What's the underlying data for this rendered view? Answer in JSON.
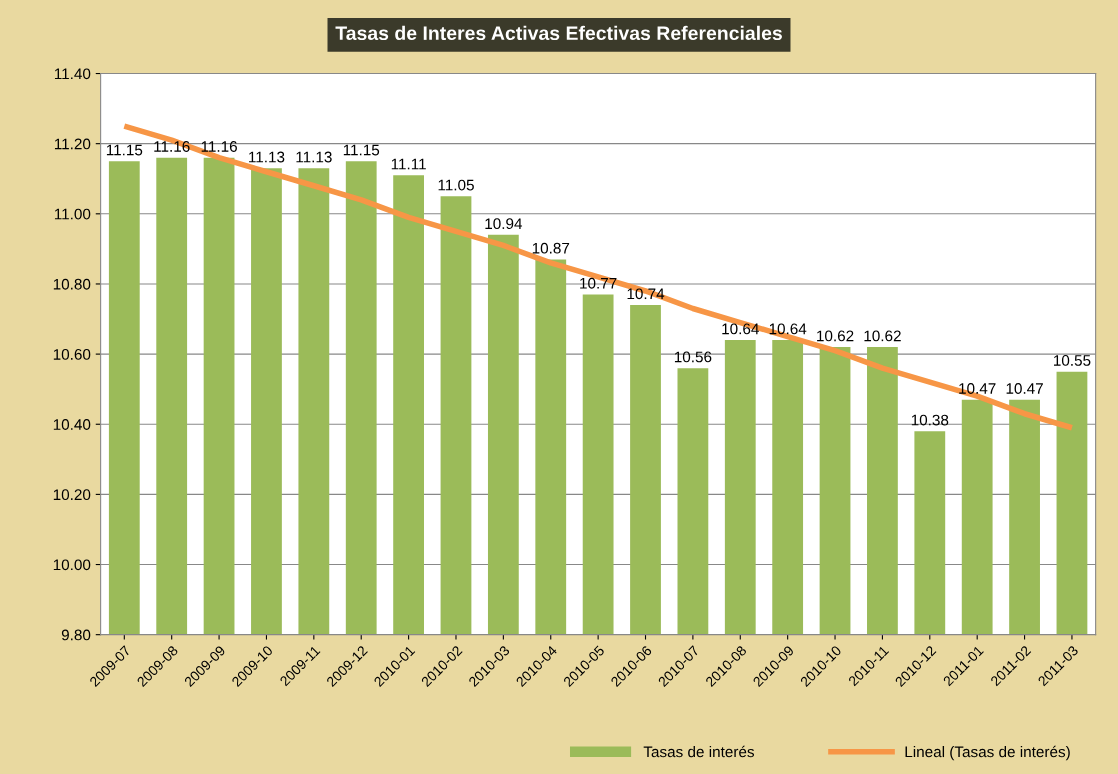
{
  "chart_data": {
    "type": "bar",
    "title": "Tasas de Interes Activas Efectivas Referenciales",
    "categories": [
      "2009-07",
      "2009-08",
      "2009-09",
      "2009-10",
      "2009-11",
      "2009-12",
      "2010-01",
      "2010-02",
      "2010-03",
      "2010-04",
      "2010-05",
      "2010-06",
      "2010-07",
      "2010-08",
      "2010-09",
      "2010-10",
      "2010-11",
      "2010-12",
      "2011-01",
      "2011-02",
      "2011-03"
    ],
    "series": [
      {
        "name": "Tasas de interés",
        "color": "#9bbb59",
        "values": [
          11.15,
          11.16,
          11.16,
          11.13,
          11.13,
          11.15,
          11.11,
          11.05,
          10.94,
          10.87,
          10.77,
          10.74,
          10.56,
          10.64,
          10.64,
          10.62,
          10.62,
          10.38,
          10.47,
          10.47,
          10.55
        ],
        "value_labels": [
          "11.15",
          "11.16",
          "11.16",
          "11.13",
          "11.13",
          "11.15",
          "11.11",
          "11.05",
          "10.94",
          "10.87",
          "10.77",
          "10.74",
          "10.56",
          "10.64",
          "10.64",
          "10.62",
          "10.62",
          "10.38",
          "10.47",
          "10.47",
          "10.55"
        ]
      },
      {
        "name": "Lineal (Tasas de interés)",
        "type": "line",
        "color": "#f79646",
        "values": [
          11.25,
          11.21,
          11.16,
          11.12,
          11.08,
          11.04,
          10.99,
          10.95,
          10.91,
          10.86,
          10.82,
          10.78,
          10.73,
          10.69,
          10.65,
          10.61,
          10.56,
          10.52,
          10.48,
          10.43,
          10.39
        ]
      }
    ],
    "ylim": [
      9.8,
      11.4
    ],
    "yticks": [
      {
        "value": 9.8,
        "label": "9.80"
      },
      {
        "value": 10.0,
        "label": "10.00"
      },
      {
        "value": 10.2,
        "label": "10.20"
      },
      {
        "value": 10.4,
        "label": "10.40"
      },
      {
        "value": 10.6,
        "label": "10.60"
      },
      {
        "value": 10.8,
        "label": "10.80"
      },
      {
        "value": 11.0,
        "label": "11.00"
      },
      {
        "value": 11.2,
        "label": "11.20"
      },
      {
        "value": 11.4,
        "label": "11.40"
      }
    ],
    "grid": "y",
    "legend": "bottom right"
  }
}
